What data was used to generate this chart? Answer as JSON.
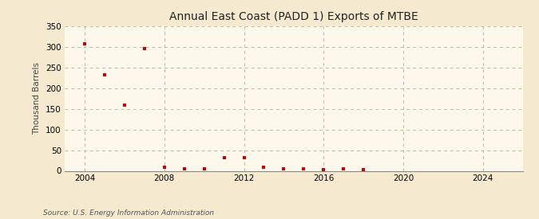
{
  "title": "Annual East Coast (PADD 1) Exports of MTBE",
  "ylabel": "Thousand Barrels",
  "source": "Source: U.S. Energy Information Administration",
  "background_color": "#f5ead0",
  "plot_background_color": "#fdf8ec",
  "marker_color": "#cc0000",
  "grid_color": "#c8b898",
  "years": [
    2004,
    2005,
    2006,
    2007,
    2008,
    2009,
    2010,
    2011,
    2012,
    2013,
    2014,
    2015,
    2016,
    2017,
    2018
  ],
  "values": [
    308,
    232,
    159,
    296,
    8,
    4,
    4,
    32,
    32,
    9,
    4,
    4,
    3,
    4,
    2
  ],
  "xlim": [
    2003.0,
    2026.0
  ],
  "ylim": [
    0,
    350
  ],
  "yticks": [
    0,
    50,
    100,
    150,
    200,
    250,
    300,
    350
  ],
  "xticks": [
    2004,
    2008,
    2012,
    2016,
    2020,
    2024
  ]
}
